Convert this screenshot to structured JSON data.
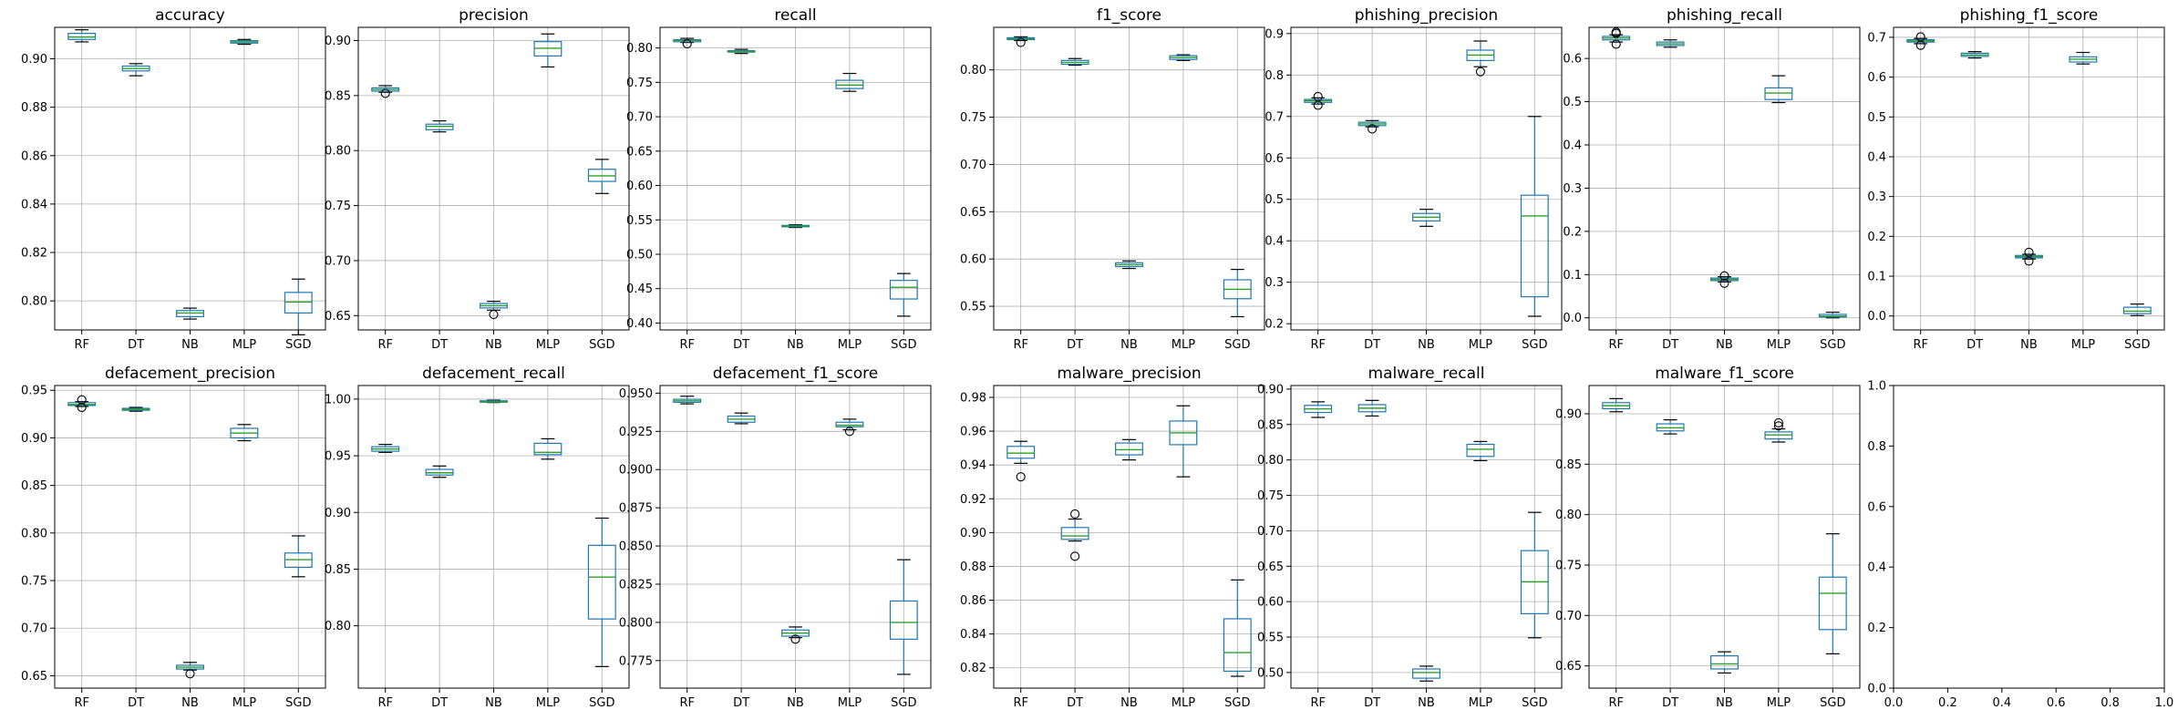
{
  "chart_data": [
    {
      "type": "box",
      "title": "accuracy",
      "categories": [
        "RF",
        "DT",
        "NB",
        "MLP",
        "SGD"
      ],
      "ylim": [
        0.788,
        0.913
      ],
      "yticks": [
        0.8,
        0.82,
        0.84,
        0.86,
        0.88,
        0.9
      ],
      "grid": true,
      "series": [
        {
          "name": "RF",
          "whislo": 0.907,
          "q1": 0.908,
          "med": 0.909,
          "q3": 0.9105,
          "whishi": 0.912,
          "fliers": []
        },
        {
          "name": "DT",
          "whislo": 0.893,
          "q1": 0.895,
          "med": 0.896,
          "q3": 0.897,
          "whishi": 0.898,
          "fliers": []
        },
        {
          "name": "NB",
          "whislo": 0.7925,
          "q1": 0.7935,
          "med": 0.795,
          "q3": 0.796,
          "whishi": 0.797,
          "fliers": []
        },
        {
          "name": "MLP",
          "whislo": 0.906,
          "q1": 0.9065,
          "med": 0.907,
          "q3": 0.9075,
          "whishi": 0.908,
          "fliers": []
        },
        {
          "name": "SGD",
          "whislo": 0.786,
          "q1": 0.795,
          "med": 0.7995,
          "q3": 0.8035,
          "whishi": 0.809,
          "fliers": []
        }
      ]
    },
    {
      "type": "box",
      "title": "precision",
      "categories": [
        "RF",
        "DT",
        "NB",
        "MLP",
        "SGD"
      ],
      "ylim": [
        0.637,
        0.912
      ],
      "yticks": [
        0.65,
        0.7,
        0.75,
        0.8,
        0.85,
        0.9
      ],
      "grid": true,
      "series": [
        {
          "name": "RF",
          "whislo": 0.853,
          "q1": 0.854,
          "med": 0.8555,
          "q3": 0.857,
          "whishi": 0.859,
          "fliers": [
            0.852
          ]
        },
        {
          "name": "DT",
          "whislo": 0.817,
          "q1": 0.819,
          "med": 0.822,
          "q3": 0.824,
          "whishi": 0.827,
          "fliers": []
        },
        {
          "name": "NB",
          "whislo": 0.655,
          "q1": 0.657,
          "med": 0.659,
          "q3": 0.661,
          "whishi": 0.663,
          "fliers": [
            0.651
          ]
        },
        {
          "name": "MLP",
          "whislo": 0.876,
          "q1": 0.886,
          "med": 0.893,
          "q3": 0.899,
          "whishi": 0.906,
          "fliers": []
        },
        {
          "name": "SGD",
          "whislo": 0.761,
          "q1": 0.772,
          "med": 0.777,
          "q3": 0.783,
          "whishi": 0.792,
          "fliers": []
        }
      ]
    },
    {
      "type": "box",
      "title": "recall",
      "categories": [
        "RF",
        "DT",
        "NB",
        "MLP",
        "SGD"
      ],
      "ylim": [
        0.39,
        0.83
      ],
      "yticks": [
        0.4,
        0.45,
        0.5,
        0.55,
        0.6,
        0.65,
        0.7,
        0.75,
        0.8
      ],
      "grid": true,
      "series": [
        {
          "name": "RF",
          "whislo": 0.808,
          "q1": 0.809,
          "med": 0.811,
          "q3": 0.812,
          "whishi": 0.814,
          "fliers": [
            0.806
          ]
        },
        {
          "name": "DT",
          "whislo": 0.792,
          "q1": 0.794,
          "med": 0.795,
          "q3": 0.796,
          "whishi": 0.798,
          "fliers": []
        },
        {
          "name": "NB",
          "whislo": 0.539,
          "q1": 0.54,
          "med": 0.541,
          "q3": 0.542,
          "whishi": 0.543,
          "fliers": []
        },
        {
          "name": "MLP",
          "whislo": 0.737,
          "q1": 0.741,
          "med": 0.746,
          "q3": 0.753,
          "whishi": 0.763,
          "fliers": []
        },
        {
          "name": "SGD",
          "whislo": 0.41,
          "q1": 0.435,
          "med": 0.452,
          "q3": 0.462,
          "whishi": 0.472,
          "fliers": []
        }
      ]
    },
    {
      "type": "box",
      "title": "f1_score",
      "categories": [
        "RF",
        "DT",
        "NB",
        "MLP",
        "SGD"
      ],
      "ylim": [
        0.525,
        0.845
      ],
      "yticks": [
        0.55,
        0.6,
        0.65,
        0.7,
        0.75,
        0.8
      ],
      "grid": true,
      "series": [
        {
          "name": "RF",
          "whislo": 0.831,
          "q1": 0.832,
          "med": 0.833,
          "q3": 0.834,
          "whishi": 0.835,
          "fliers": [
            0.829
          ]
        },
        {
          "name": "DT",
          "whislo": 0.805,
          "q1": 0.806,
          "med": 0.808,
          "q3": 0.81,
          "whishi": 0.812,
          "fliers": []
        },
        {
          "name": "NB",
          "whislo": 0.59,
          "q1": 0.592,
          "med": 0.594,
          "q3": 0.596,
          "whishi": 0.598,
          "fliers": []
        },
        {
          "name": "MLP",
          "whislo": 0.81,
          "q1": 0.811,
          "med": 0.813,
          "q3": 0.815,
          "whishi": 0.816,
          "fliers": []
        },
        {
          "name": "SGD",
          "whislo": 0.539,
          "q1": 0.558,
          "med": 0.568,
          "q3": 0.578,
          "whishi": 0.589,
          "fliers": []
        }
      ]
    },
    {
      "type": "box",
      "title": "phishing_precision",
      "categories": [
        "RF",
        "DT",
        "NB",
        "MLP",
        "SGD"
      ],
      "ylim": [
        0.185,
        0.915
      ],
      "yticks": [
        0.2,
        0.3,
        0.4,
        0.5,
        0.6,
        0.7,
        0.8,
        0.9
      ],
      "grid": true,
      "series": [
        {
          "name": "RF",
          "whislo": 0.73,
          "q1": 0.734,
          "med": 0.738,
          "q3": 0.741,
          "whishi": 0.745,
          "fliers": [
            0.727,
            0.748
          ]
        },
        {
          "name": "DT",
          "whislo": 0.675,
          "q1": 0.678,
          "med": 0.682,
          "q3": 0.686,
          "whishi": 0.69,
          "fliers": [
            0.67
          ]
        },
        {
          "name": "NB",
          "whislo": 0.435,
          "q1": 0.448,
          "med": 0.457,
          "q3": 0.466,
          "whishi": 0.476,
          "fliers": []
        },
        {
          "name": "MLP",
          "whislo": 0.82,
          "q1": 0.835,
          "med": 0.848,
          "q3": 0.86,
          "whishi": 0.882,
          "fliers": [
            0.808
          ]
        },
        {
          "name": "SGD",
          "whislo": 0.218,
          "q1": 0.265,
          "med": 0.46,
          "q3": 0.51,
          "whishi": 0.7,
          "fliers": []
        }
      ]
    },
    {
      "type": "box",
      "title": "phishing_recall",
      "categories": [
        "RF",
        "DT",
        "NB",
        "MLP",
        "SGD"
      ],
      "ylim": [
        -0.028,
        0.672
      ],
      "yticks": [
        0.0,
        0.1,
        0.2,
        0.3,
        0.4,
        0.5,
        0.6
      ],
      "grid": true,
      "series": [
        {
          "name": "RF",
          "whislo": 0.638,
          "q1": 0.643,
          "med": 0.647,
          "q3": 0.651,
          "whishi": 0.655,
          "fliers": [
            0.633,
            0.658,
            0.661
          ]
        },
        {
          "name": "DT",
          "whislo": 0.626,
          "q1": 0.63,
          "med": 0.634,
          "q3": 0.638,
          "whishi": 0.643,
          "fliers": []
        },
        {
          "name": "NB",
          "whislo": 0.083,
          "q1": 0.086,
          "med": 0.089,
          "q3": 0.092,
          "whishi": 0.095,
          "fliers": [
            0.08,
            0.097
          ]
        },
        {
          "name": "MLP",
          "whislo": 0.498,
          "q1": 0.505,
          "med": 0.52,
          "q3": 0.532,
          "whishi": 0.56,
          "fliers": []
        },
        {
          "name": "SGD",
          "whislo": 0.0,
          "q1": 0.002,
          "med": 0.004,
          "q3": 0.008,
          "whishi": 0.013,
          "fliers": []
        }
      ]
    },
    {
      "type": "box",
      "title": "phishing_f1_score",
      "categories": [
        "RF",
        "DT",
        "NB",
        "MLP",
        "SGD"
      ],
      "ylim": [
        -0.035,
        0.725
      ],
      "yticks": [
        0.0,
        0.1,
        0.2,
        0.3,
        0.4,
        0.5,
        0.6,
        0.7
      ],
      "grid": true,
      "series": [
        {
          "name": "RF",
          "whislo": 0.684,
          "q1": 0.688,
          "med": 0.691,
          "q3": 0.694,
          "whishi": 0.697,
          "fliers": [
            0.68,
            0.701
          ]
        },
        {
          "name": "DT",
          "whislo": 0.648,
          "q1": 0.652,
          "med": 0.656,
          "q3": 0.66,
          "whishi": 0.664,
          "fliers": []
        },
        {
          "name": "NB",
          "whislo": 0.143,
          "q1": 0.146,
          "med": 0.149,
          "q3": 0.152,
          "whishi": 0.155,
          "fliers": [
            0.138,
            0.16
          ]
        },
        {
          "name": "MLP",
          "whislo": 0.633,
          "q1": 0.638,
          "med": 0.645,
          "q3": 0.651,
          "whishi": 0.662,
          "fliers": []
        },
        {
          "name": "SGD",
          "whislo": 0.001,
          "q1": 0.006,
          "med": 0.012,
          "q3": 0.022,
          "whishi": 0.03,
          "fliers": []
        }
      ]
    },
    {
      "type": "box",
      "title": "defacement_precision",
      "categories": [
        "RF",
        "DT",
        "NB",
        "MLP",
        "SGD"
      ],
      "ylim": [
        0.637,
        0.955
      ],
      "yticks": [
        0.65,
        0.7,
        0.75,
        0.8,
        0.85,
        0.9,
        0.95
      ],
      "grid": true,
      "series": [
        {
          "name": "RF",
          "whislo": 0.933,
          "q1": 0.934,
          "med": 0.935,
          "q3": 0.937,
          "whishi": 0.938,
          "fliers": [
            0.932,
            0.94
          ]
        },
        {
          "name": "DT",
          "whislo": 0.928,
          "q1": 0.929,
          "med": 0.93,
          "q3": 0.931,
          "whishi": 0.932,
          "fliers": []
        },
        {
          "name": "NB",
          "whislo": 0.656,
          "q1": 0.657,
          "med": 0.659,
          "q3": 0.661,
          "whishi": 0.664,
          "fliers": [
            0.652
          ]
        },
        {
          "name": "MLP",
          "whislo": 0.897,
          "q1": 0.9,
          "med": 0.905,
          "q3": 0.91,
          "whishi": 0.914,
          "fliers": []
        },
        {
          "name": "SGD",
          "whislo": 0.754,
          "q1": 0.764,
          "med": 0.772,
          "q3": 0.779,
          "whishi": 0.797,
          "fliers": []
        }
      ]
    },
    {
      "type": "box",
      "title": "defacement_recall",
      "categories": [
        "RF",
        "DT",
        "NB",
        "MLP",
        "SGD"
      ],
      "ylim": [
        0.745,
        1.012
      ],
      "yticks": [
        0.8,
        0.85,
        0.9,
        0.95,
        1.0
      ],
      "grid": true,
      "series": [
        {
          "name": "RF",
          "whislo": 0.953,
          "q1": 0.954,
          "med": 0.956,
          "q3": 0.958,
          "whishi": 0.96,
          "fliers": []
        },
        {
          "name": "DT",
          "whislo": 0.931,
          "q1": 0.933,
          "med": 0.935,
          "q3": 0.938,
          "whishi": 0.941,
          "fliers": []
        },
        {
          "name": "NB",
          "whislo": 0.997,
          "q1": 0.9975,
          "med": 0.998,
          "q3": 0.9985,
          "whishi": 0.999,
          "fliers": []
        },
        {
          "name": "MLP",
          "whislo": 0.947,
          "q1": 0.951,
          "med": 0.953,
          "q3": 0.961,
          "whishi": 0.965,
          "fliers": []
        },
        {
          "name": "SGD",
          "whislo": 0.764,
          "q1": 0.806,
          "med": 0.843,
          "q3": 0.871,
          "whishi": 0.895,
          "fliers": []
        }
      ]
    },
    {
      "type": "box",
      "title": "defacement_f1_score",
      "categories": [
        "RF",
        "DT",
        "NB",
        "MLP",
        "SGD"
      ],
      "ylim": [
        0.757,
        0.955
      ],
      "yticks": [
        0.775,
        0.8,
        0.825,
        0.85,
        0.875,
        0.9,
        0.925,
        0.95
      ],
      "yticklabels": [
        "0.775",
        "0.800",
        "0.825",
        "0.850",
        "0.875",
        "0.900",
        "0.925",
        "0.950"
      ],
      "grid": true,
      "series": [
        {
          "name": "RF",
          "whislo": 0.943,
          "q1": 0.944,
          "med": 0.945,
          "q3": 0.946,
          "whishi": 0.948,
          "fliers": []
        },
        {
          "name": "DT",
          "whislo": 0.93,
          "q1": 0.931,
          "med": 0.933,
          "q3": 0.935,
          "whishi": 0.937,
          "fliers": []
        },
        {
          "name": "NB",
          "whislo": 0.79,
          "q1": 0.791,
          "med": 0.793,
          "q3": 0.795,
          "whishi": 0.797,
          "fliers": [
            0.789
          ]
        },
        {
          "name": "MLP",
          "whislo": 0.926,
          "q1": 0.928,
          "med": 0.929,
          "q3": 0.931,
          "whishi": 0.933,
          "fliers": [
            0.925
          ]
        },
        {
          "name": "SGD",
          "whislo": 0.766,
          "q1": 0.789,
          "med": 0.8,
          "q3": 0.814,
          "whishi": 0.841,
          "fliers": []
        }
      ]
    },
    {
      "type": "box",
      "title": "malware_precision",
      "categories": [
        "RF",
        "DT",
        "NB",
        "MLP",
        "SGD"
      ],
      "ylim": [
        0.808,
        0.987
      ],
      "yticks": [
        0.82,
        0.84,
        0.86,
        0.88,
        0.9,
        0.92,
        0.94,
        0.96,
        0.98
      ],
      "grid": true,
      "series": [
        {
          "name": "RF",
          "whislo": 0.941,
          "q1": 0.944,
          "med": 0.947,
          "q3": 0.951,
          "whishi": 0.954,
          "fliers": [
            0.933
          ]
        },
        {
          "name": "DT",
          "whislo": 0.895,
          "q1": 0.896,
          "med": 0.898,
          "q3": 0.903,
          "whishi": 0.908,
          "fliers": [
            0.886,
            0.911
          ]
        },
        {
          "name": "NB",
          "whislo": 0.943,
          "q1": 0.946,
          "med": 0.949,
          "q3": 0.953,
          "whishi": 0.955,
          "fliers": []
        },
        {
          "name": "MLP",
          "whislo": 0.933,
          "q1": 0.952,
          "med": 0.959,
          "q3": 0.966,
          "whishi": 0.975,
          "fliers": []
        },
        {
          "name": "SGD",
          "whislo": 0.815,
          "q1": 0.818,
          "med": 0.829,
          "q3": 0.849,
          "whishi": 0.872,
          "fliers": []
        }
      ]
    },
    {
      "type": "box",
      "title": "malware_recall",
      "categories": [
        "RF",
        "DT",
        "NB",
        "MLP",
        "SGD"
      ],
      "ylim": [
        0.478,
        0.905
      ],
      "yticks": [
        0.5,
        0.55,
        0.6,
        0.65,
        0.7,
        0.75,
        0.8,
        0.85,
        0.9
      ],
      "grid": true,
      "series": [
        {
          "name": "RF",
          "whislo": 0.86,
          "q1": 0.867,
          "med": 0.872,
          "q3": 0.877,
          "whishi": 0.882,
          "fliers": []
        },
        {
          "name": "DT",
          "whislo": 0.862,
          "q1": 0.868,
          "med": 0.873,
          "q3": 0.878,
          "whishi": 0.884,
          "fliers": []
        },
        {
          "name": "NB",
          "whislo": 0.488,
          "q1": 0.492,
          "med": 0.5,
          "q3": 0.505,
          "whishi": 0.509,
          "fliers": []
        },
        {
          "name": "MLP",
          "whislo": 0.799,
          "q1": 0.805,
          "med": 0.815,
          "q3": 0.822,
          "whishi": 0.826,
          "fliers": []
        },
        {
          "name": "SGD",
          "whislo": 0.549,
          "q1": 0.583,
          "med": 0.628,
          "q3": 0.672,
          "whishi": 0.726,
          "fliers": []
        }
      ]
    },
    {
      "type": "box",
      "title": "malware_f1_score",
      "categories": [
        "RF",
        "DT",
        "NB",
        "MLP",
        "SGD"
      ],
      "ylim": [
        0.628,
        0.928
      ],
      "yticks": [
        0.65,
        0.7,
        0.75,
        0.8,
        0.85,
        0.9
      ],
      "grid": true,
      "series": [
        {
          "name": "RF",
          "whislo": 0.902,
          "q1": 0.905,
          "med": 0.908,
          "q3": 0.911,
          "whishi": 0.915,
          "fliers": []
        },
        {
          "name": "DT",
          "whislo": 0.88,
          "q1": 0.883,
          "med": 0.886,
          "q3": 0.89,
          "whishi": 0.894,
          "fliers": []
        },
        {
          "name": "NB",
          "whislo": 0.643,
          "q1": 0.647,
          "med": 0.652,
          "q3": 0.66,
          "whishi": 0.664,
          "fliers": []
        },
        {
          "name": "MLP",
          "whislo": 0.872,
          "q1": 0.875,
          "med": 0.879,
          "q3": 0.882,
          "whishi": 0.885,
          "fliers": [
            0.888,
            0.891
          ]
        },
        {
          "name": "SGD",
          "whislo": 0.662,
          "q1": 0.686,
          "med": 0.722,
          "q3": 0.738,
          "whishi": 0.781,
          "fliers": []
        }
      ]
    },
    {
      "type": "empty",
      "title": "",
      "xlim": [
        0.0,
        1.0
      ],
      "ylim": [
        0.0,
        1.0
      ],
      "xticks": [
        0.0,
        0.2,
        0.4,
        0.6,
        0.8,
        1.0
      ],
      "yticks": [
        0.0,
        0.2,
        0.4,
        0.6,
        0.8,
        1.0
      ],
      "grid": false,
      "series": []
    }
  ],
  "colors": {
    "box": "#1f77b4",
    "median": "#2ca02c",
    "grid": "#b0b0b0",
    "axis": "#000000"
  }
}
